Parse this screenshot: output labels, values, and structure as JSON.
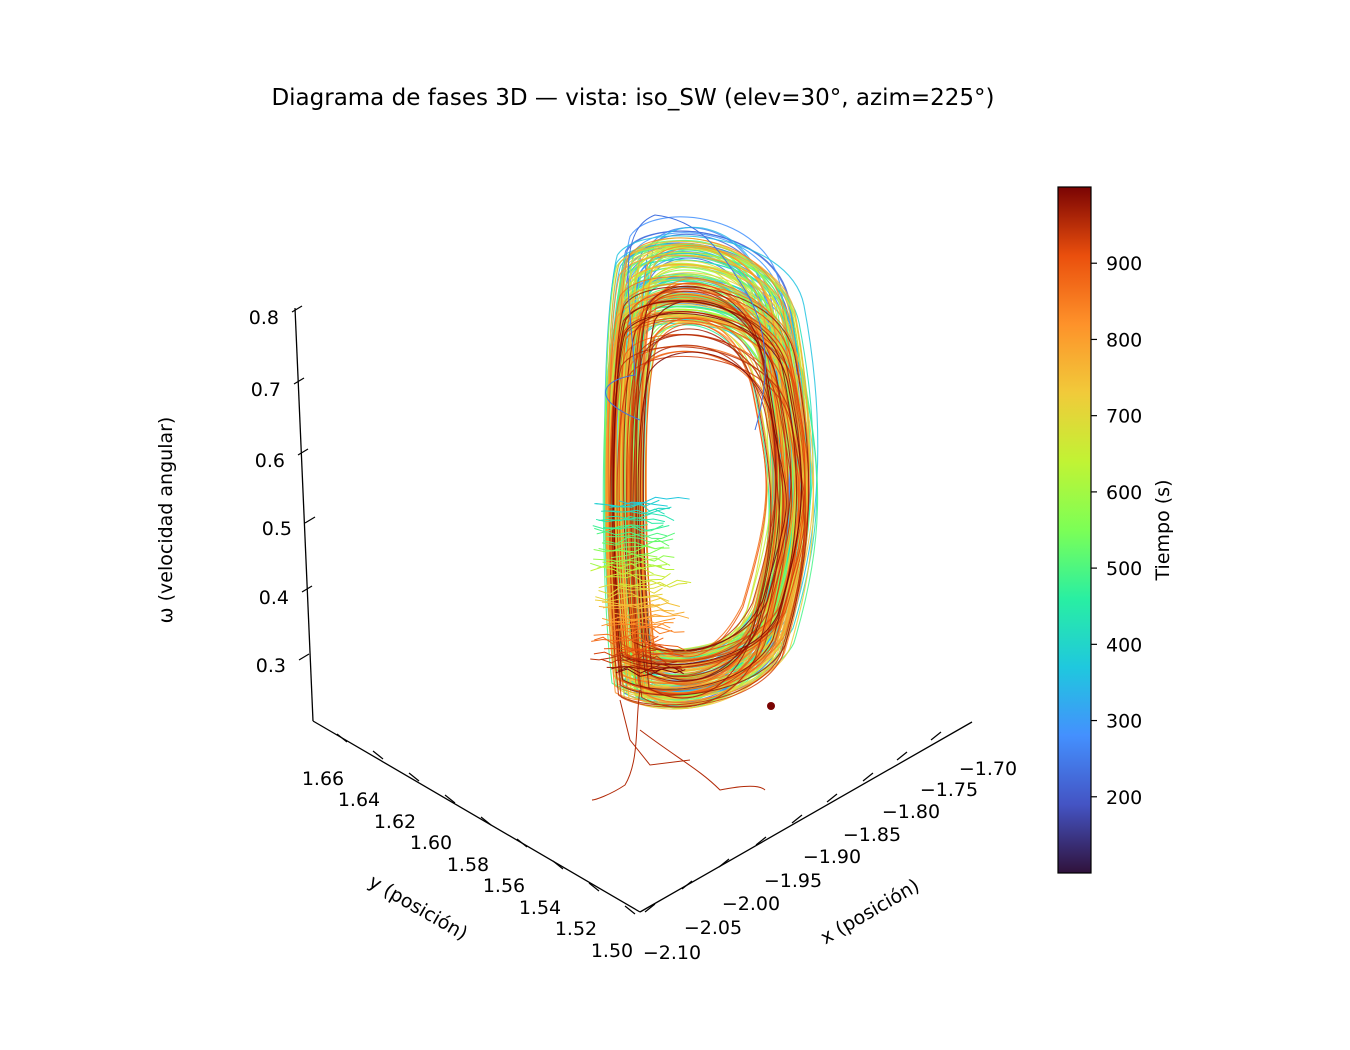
{
  "chart_data": {
    "type": "line",
    "title": "Diagrama de fases 3D — vista: iso_SW (elev=30°, azim=225°)",
    "xlabel": "x (posición)",
    "ylabel": "y (posición)",
    "zlabel": "ω (velocidad angular)",
    "colorbar_label": "Tiempo (s)",
    "colormap": "turbo",
    "x_ticks": [
      "−2.10",
      "−2.05",
      "−2.00",
      "−1.95",
      "−1.90",
      "−1.85",
      "−1.80",
      "−1.75",
      "−1.70"
    ],
    "y_ticks": [
      "1.50",
      "1.52",
      "1.54",
      "1.56",
      "1.58",
      "1.60",
      "1.62",
      "1.64",
      "1.66"
    ],
    "z_ticks": [
      "0.3",
      "0.4",
      "0.5",
      "0.6",
      "0.7",
      "0.8"
    ],
    "colorbar_ticks": [
      "200",
      "300",
      "400",
      "500",
      "600",
      "700",
      "800",
      "900"
    ],
    "colorbar_range": [
      100,
      1000
    ],
    "grid": false,
    "end_marker": {
      "t": 1000,
      "color": "#7a0403"
    }
  }
}
